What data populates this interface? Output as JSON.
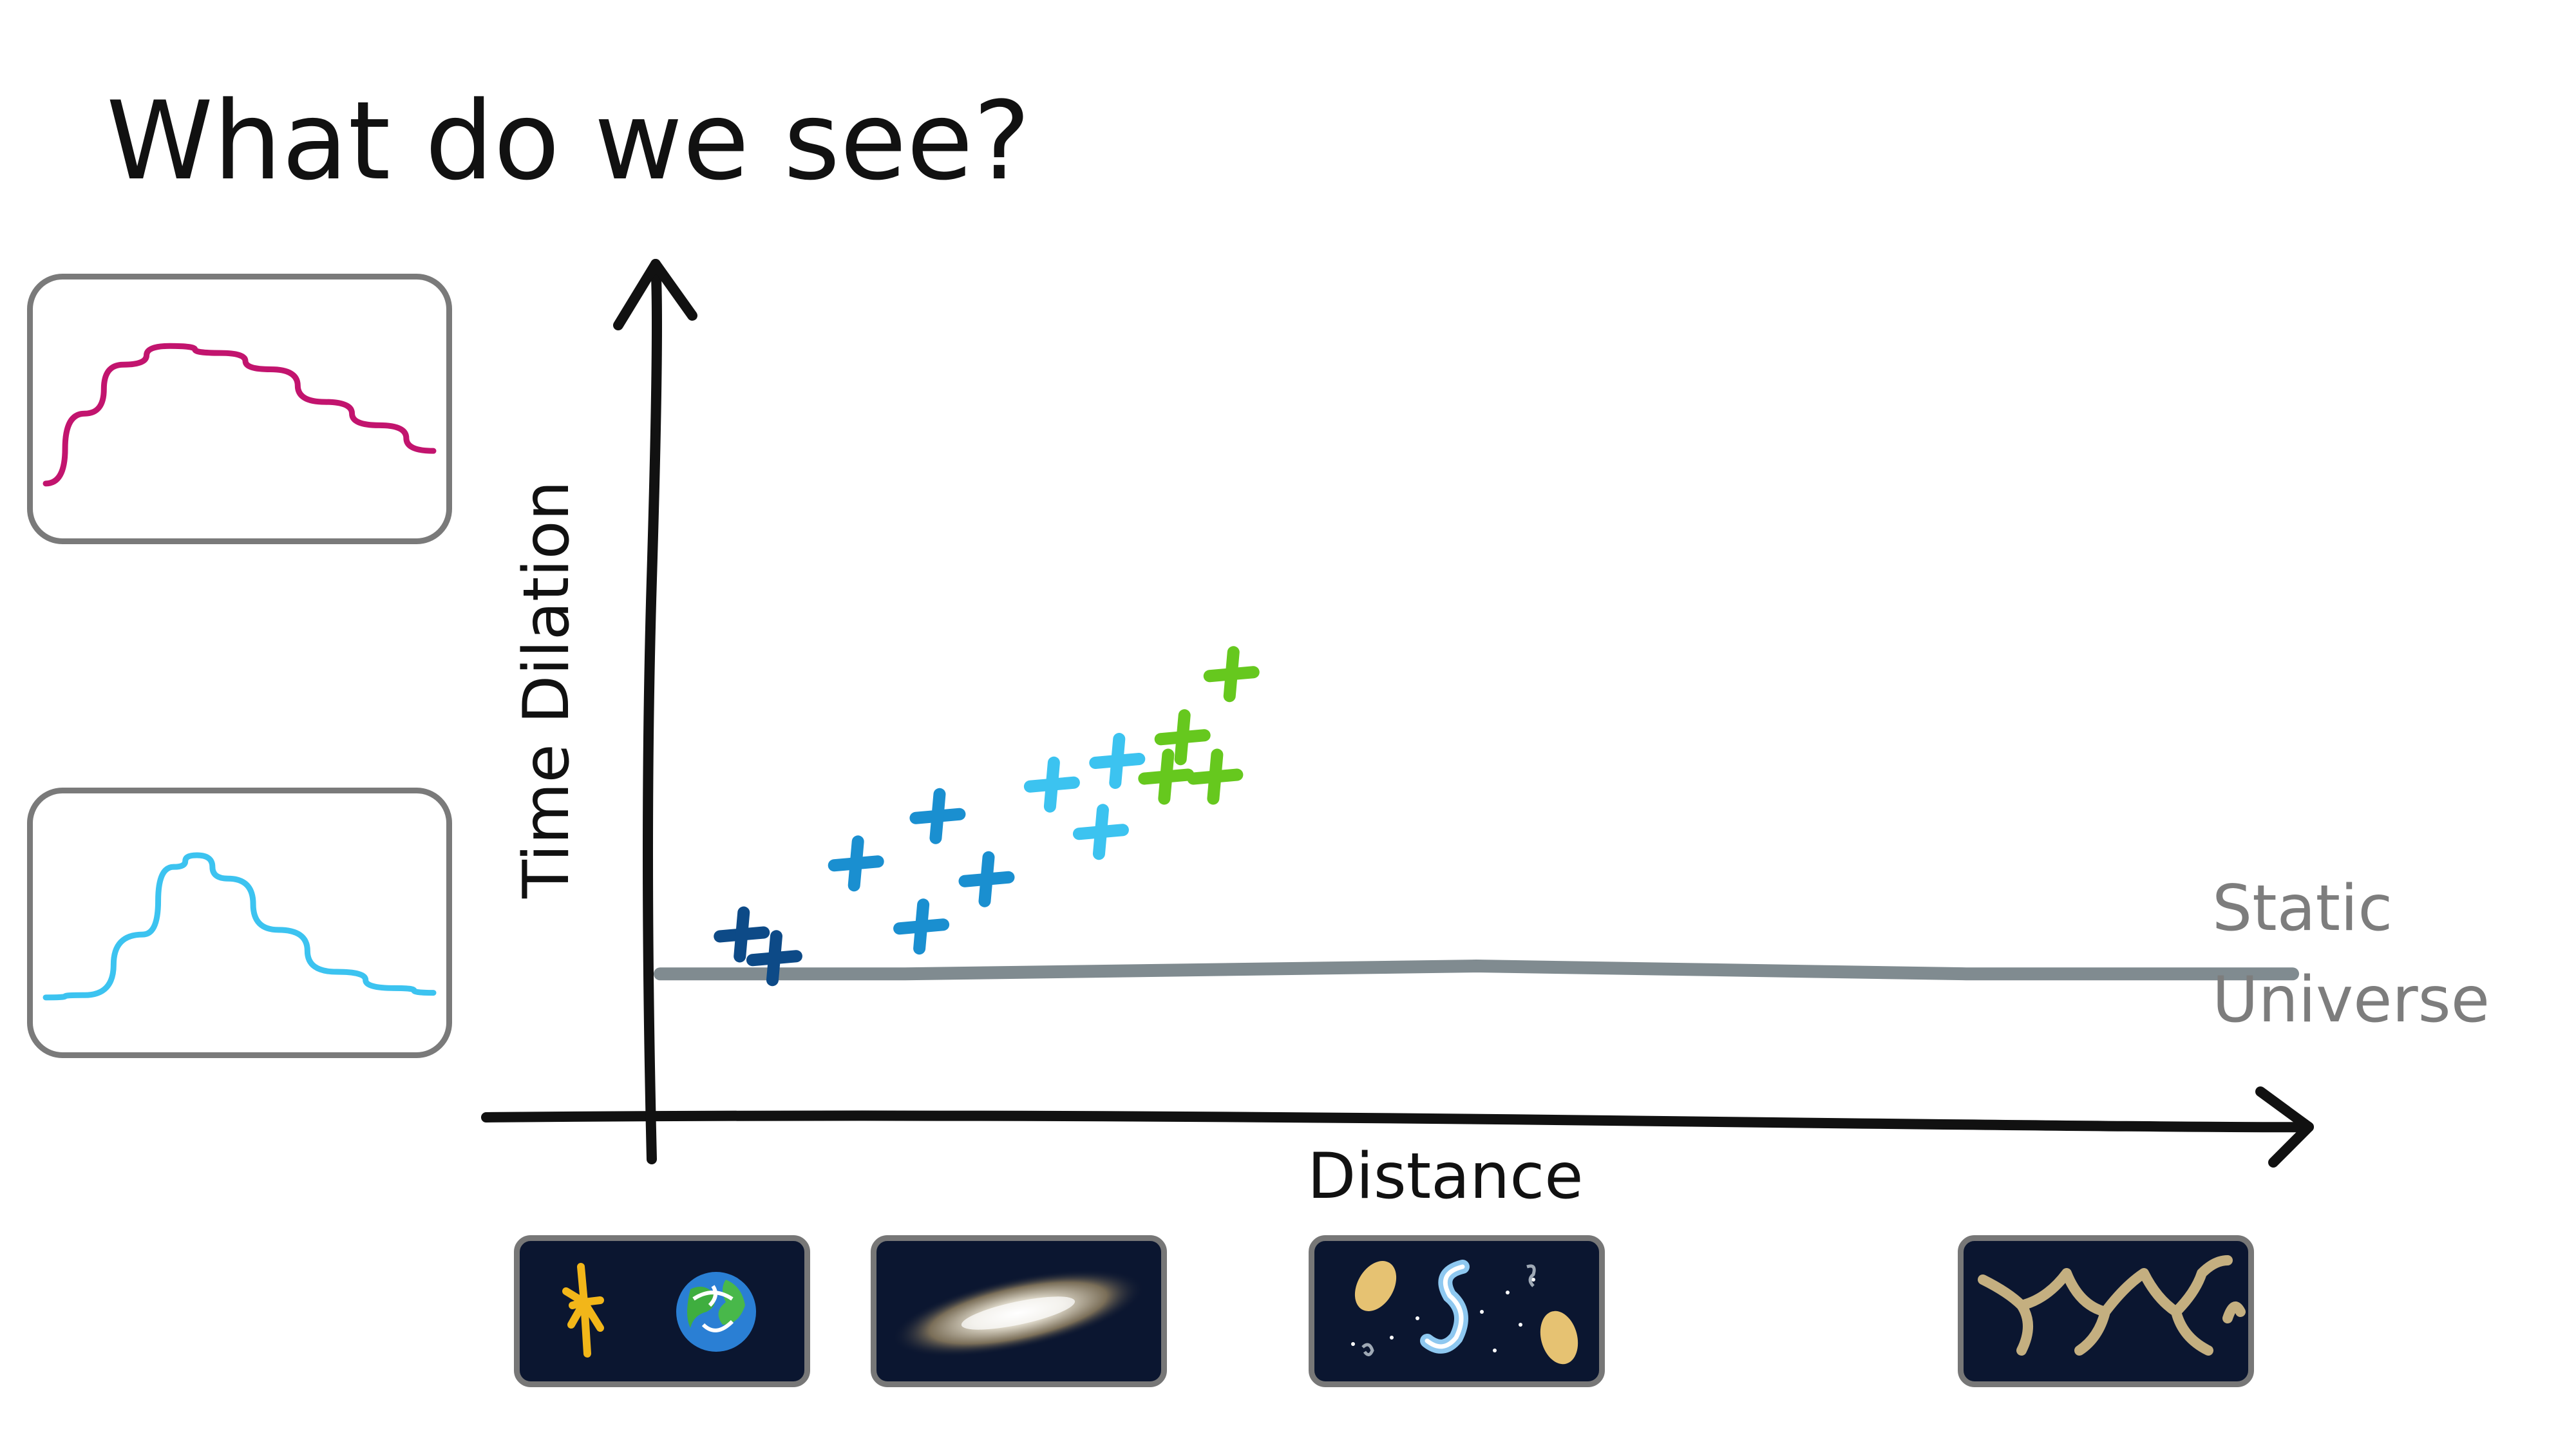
{
  "slide": {
    "title": "What do we see?"
  },
  "light_curves": [
    {
      "name": "magenta light curve",
      "color": "#c2146e",
      "points": [
        [
          0,
          0.18
        ],
        [
          0.1,
          0.48
        ],
        [
          0.2,
          0.69
        ],
        [
          0.32,
          0.77
        ],
        [
          0.45,
          0.74
        ],
        [
          0.58,
          0.67
        ],
        [
          0.72,
          0.53
        ],
        [
          0.86,
          0.43
        ],
        [
          1,
          0.32
        ]
      ]
    },
    {
      "name": "cyan light curve",
      "color": "#3cc3f0",
      "points": [
        [
          0,
          0.18
        ],
        [
          0.1,
          0.19
        ],
        [
          0.25,
          0.45
        ],
        [
          0.33,
          0.74
        ],
        [
          0.39,
          0.79
        ],
        [
          0.47,
          0.69
        ],
        [
          0.6,
          0.47
        ],
        [
          0.75,
          0.29
        ],
        [
          0.9,
          0.22
        ],
        [
          1,
          0.2
        ]
      ]
    }
  ],
  "chart_data": {
    "type": "scatter",
    "title": "",
    "xlabel": "Distance",
    "ylabel": "Time Dilation",
    "xlim": [
      0,
      1
    ],
    "ylim": [
      0,
      1
    ],
    "grid": false,
    "series": [
      {
        "color": "#0d4a87",
        "points": [
          [
            0.05,
            0.24
          ],
          [
            0.07,
            0.21
          ]
        ]
      },
      {
        "color": "#1a8fd0",
        "points": [
          [
            0.12,
            0.33
          ],
          [
            0.17,
            0.39
          ],
          [
            0.16,
            0.25
          ],
          [
            0.2,
            0.31
          ]
        ]
      },
      {
        "color": "#3cc3f0",
        "points": [
          [
            0.24,
            0.43
          ],
          [
            0.28,
            0.46
          ],
          [
            0.27,
            0.37
          ]
        ]
      },
      {
        "color": "#66c81e",
        "points": [
          [
            0.31,
            0.44
          ],
          [
            0.32,
            0.49
          ],
          [
            0.34,
            0.44
          ],
          [
            0.35,
            0.57
          ]
        ]
      }
    ],
    "reference_line": {
      "label_lines": [
        "Static",
        "Universe"
      ],
      "color": "#808b90",
      "points": [
        [
          0,
          0.19
        ],
        [
          0.15,
          0.19
        ],
        [
          0.5,
          0.2
        ],
        [
          0.8,
          0.19
        ],
        [
          1,
          0.19
        ]
      ]
    }
  },
  "thumbnails": [
    {
      "name": "star-and-earth"
    },
    {
      "name": "galaxy"
    },
    {
      "name": "galaxy-group"
    },
    {
      "name": "cosmic-web"
    }
  ],
  "colors": {
    "axis": "#111111",
    "panel_border": "#7a7a7a",
    "thumb_bg": "#0b1630"
  }
}
